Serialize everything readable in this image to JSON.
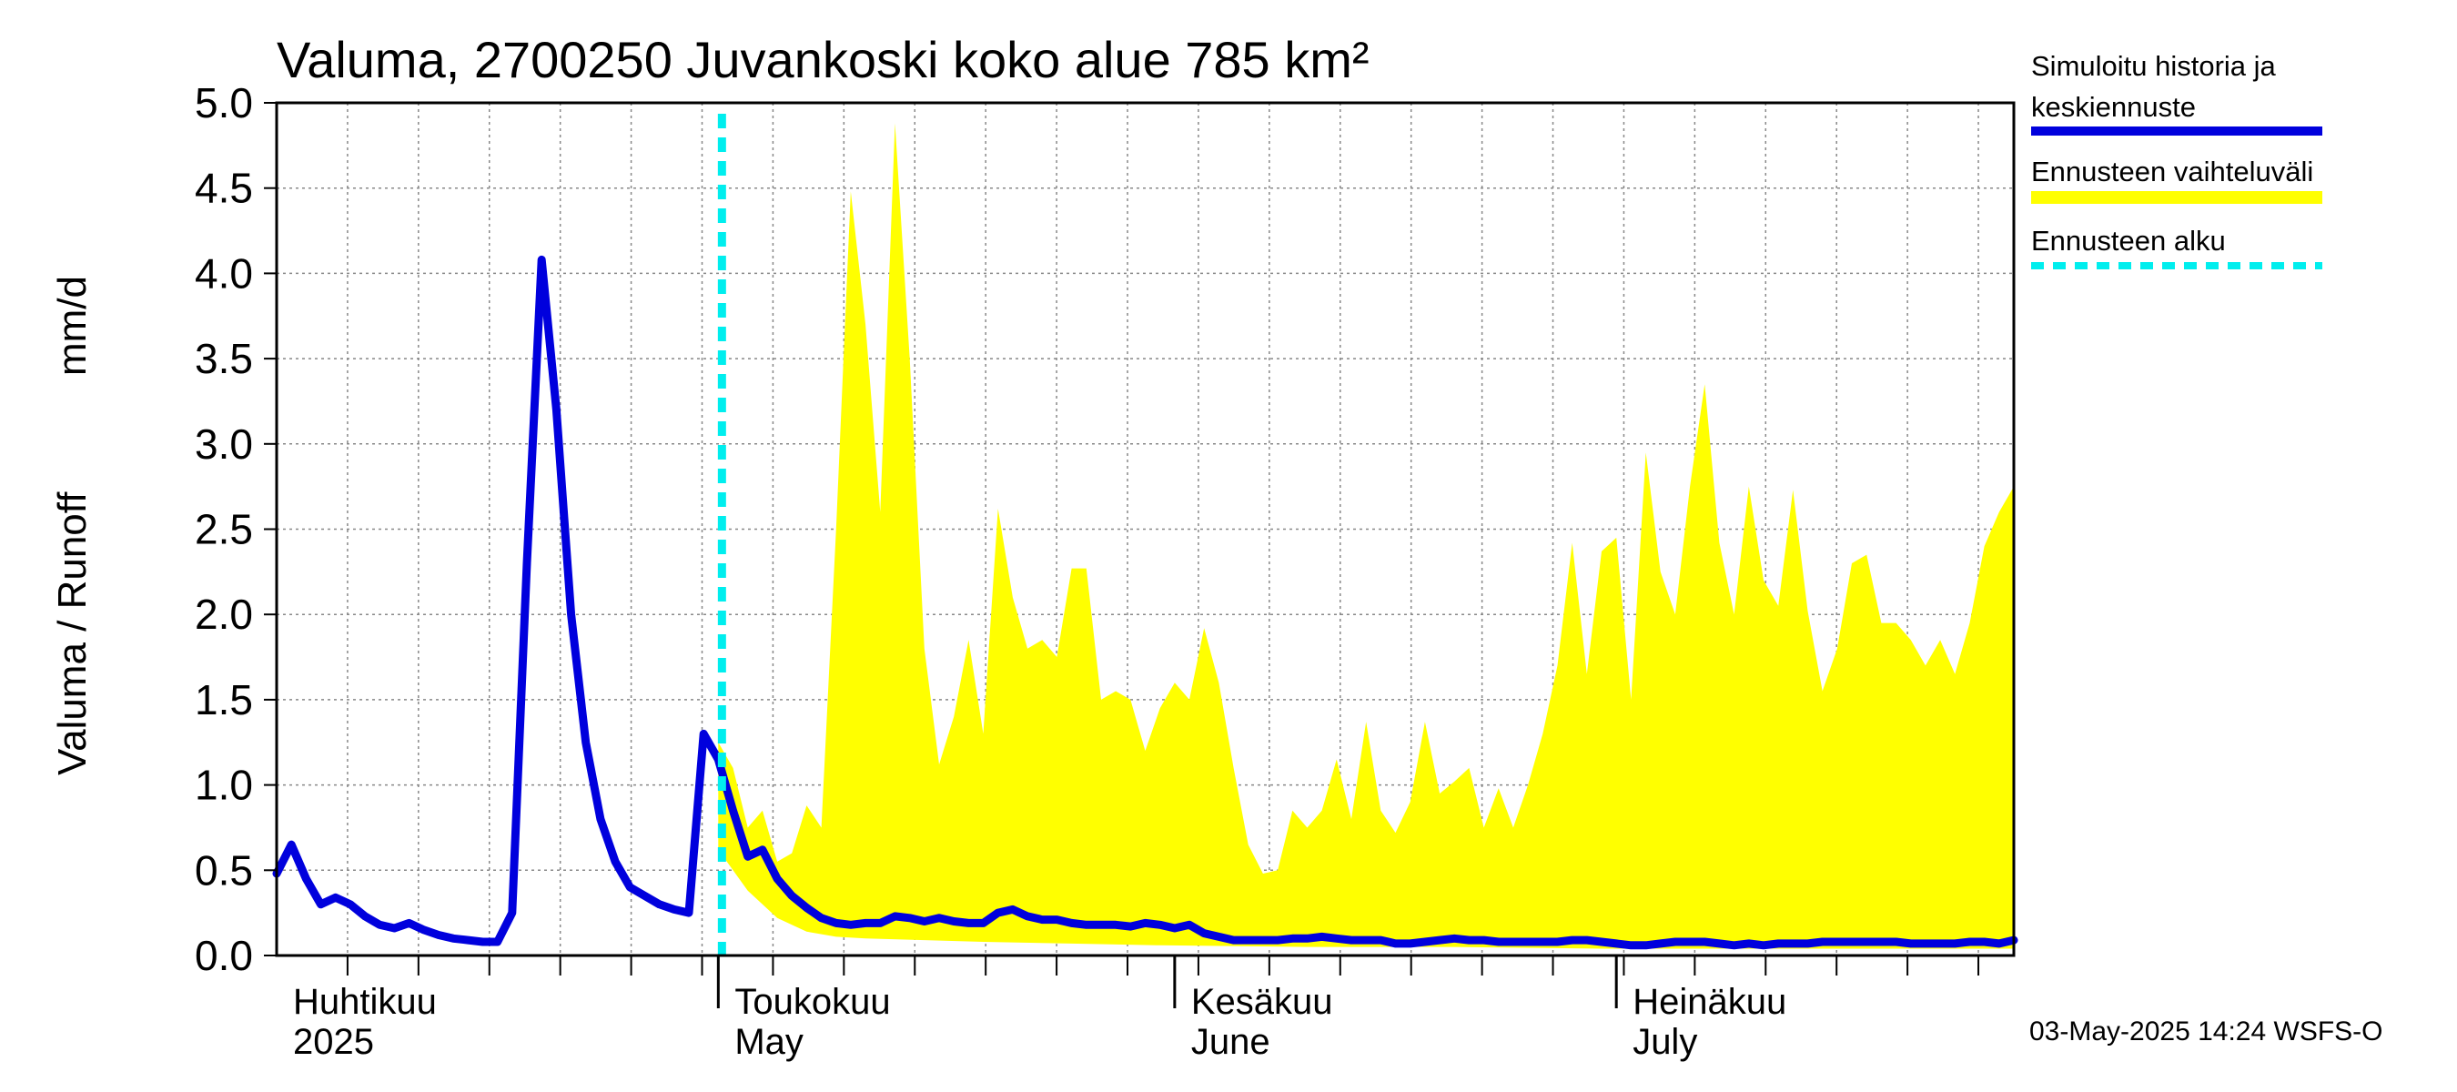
{
  "chart_data": {
    "type": "area",
    "title": "Valuma, 2700250 Juvankoski koko alue 785 km²",
    "ylabel_left": "Valuma / Runoff",
    "ylabel_unit": "mm/d",
    "ylim": [
      0,
      5
    ],
    "yticks": [
      "0.0",
      "0.5",
      "1.0",
      "1.5",
      "2.0",
      "2.5",
      "3.0",
      "3.5",
      "4.0",
      "4.5",
      "5.0"
    ],
    "x_range_days": [
      0,
      118
    ],
    "months": [
      {
        "fi": "Huhtikuu",
        "en": "2025"
      },
      {
        "fi": "Toukokuu",
        "en": "May"
      },
      {
        "fi": "Kesäkuu",
        "en": "June"
      },
      {
        "fi": "Heinäkuu",
        "en": "July"
      }
    ],
    "forecast_start_day": 30.0,
    "grid": true,
    "legend": {
      "position": "right",
      "items": [
        {
          "label_line1": "Simuloitu historia ja",
          "label_line2": "keskiennuste",
          "color": "#0000dd",
          "style": "line"
        },
        {
          "label_line1": "Ennusteen vaihteluväli",
          "label_line2": "",
          "color": "#ffff00",
          "style": "band"
        },
        {
          "label_line1": "Ennusteen alku",
          "label_line2": "",
          "color": "#00eeee",
          "style": "dashed"
        }
      ]
    },
    "footer": "03-May-2025 14:24 WSFS-O",
    "colors": {
      "history": "#0000dd",
      "band": "#ffff00",
      "forecast_start": "#00eeee",
      "grid": "#888888"
    },
    "series": [
      {
        "name": "Simuloitu historia ja keskiennuste",
        "points": [
          [
            0,
            0.48
          ],
          [
            1,
            0.65
          ],
          [
            2,
            0.45
          ],
          [
            3,
            0.3
          ],
          [
            4,
            0.34
          ],
          [
            5,
            0.3
          ],
          [
            6,
            0.23
          ],
          [
            7,
            0.18
          ],
          [
            8,
            0.16
          ],
          [
            9,
            0.19
          ],
          [
            10,
            0.15
          ],
          [
            11,
            0.12
          ],
          [
            12,
            0.1
          ],
          [
            13,
            0.09
          ],
          [
            14,
            0.08
          ],
          [
            15,
            0.08
          ],
          [
            16,
            0.25
          ],
          [
            17,
            2.3
          ],
          [
            18,
            4.08
          ],
          [
            19,
            3.2
          ],
          [
            20,
            2.0
          ],
          [
            21,
            1.25
          ],
          [
            22,
            0.8
          ],
          [
            23,
            0.55
          ],
          [
            24,
            0.4
          ],
          [
            25,
            0.35
          ],
          [
            26,
            0.3
          ],
          [
            27,
            0.27
          ],
          [
            28,
            0.25
          ],
          [
            29,
            1.3
          ],
          [
            30,
            1.15
          ],
          [
            31,
            0.85
          ],
          [
            32,
            0.58
          ],
          [
            33,
            0.62
          ],
          [
            34,
            0.45
          ],
          [
            35,
            0.35
          ],
          [
            36,
            0.28
          ],
          [
            37,
            0.22
          ],
          [
            38,
            0.19
          ],
          [
            39,
            0.18
          ],
          [
            40,
            0.19
          ],
          [
            41,
            0.19
          ],
          [
            42,
            0.23
          ],
          [
            43,
            0.22
          ],
          [
            44,
            0.2
          ],
          [
            45,
            0.22
          ],
          [
            46,
            0.2
          ],
          [
            47,
            0.19
          ],
          [
            48,
            0.19
          ],
          [
            49,
            0.25
          ],
          [
            50,
            0.27
          ],
          [
            51,
            0.23
          ],
          [
            52,
            0.21
          ],
          [
            53,
            0.21
          ],
          [
            54,
            0.19
          ],
          [
            55,
            0.18
          ],
          [
            56,
            0.18
          ],
          [
            57,
            0.18
          ],
          [
            58,
            0.17
          ],
          [
            59,
            0.19
          ],
          [
            60,
            0.18
          ],
          [
            61,
            0.16
          ],
          [
            62,
            0.18
          ],
          [
            63,
            0.13
          ],
          [
            64,
            0.11
          ],
          [
            65,
            0.09
          ],
          [
            66,
            0.09
          ],
          [
            67,
            0.09
          ],
          [
            68,
            0.09
          ],
          [
            69,
            0.1
          ],
          [
            70,
            0.1
          ],
          [
            71,
            0.11
          ],
          [
            72,
            0.1
          ],
          [
            73,
            0.09
          ],
          [
            74,
            0.09
          ],
          [
            75,
            0.09
          ],
          [
            76,
            0.07
          ],
          [
            77,
            0.07
          ],
          [
            78,
            0.08
          ],
          [
            79,
            0.09
          ],
          [
            80,
            0.1
          ],
          [
            81,
            0.09
          ],
          [
            82,
            0.09
          ],
          [
            83,
            0.08
          ],
          [
            84,
            0.08
          ],
          [
            85,
            0.08
          ],
          [
            86,
            0.08
          ],
          [
            87,
            0.08
          ],
          [
            88,
            0.09
          ],
          [
            89,
            0.09
          ],
          [
            90,
            0.08
          ],
          [
            91,
            0.07
          ],
          [
            92,
            0.06
          ],
          [
            93,
            0.06
          ],
          [
            94,
            0.07
          ],
          [
            95,
            0.08
          ],
          [
            96,
            0.08
          ],
          [
            97,
            0.08
          ],
          [
            98,
            0.07
          ],
          [
            99,
            0.06
          ],
          [
            100,
            0.07
          ],
          [
            101,
            0.06
          ],
          [
            102,
            0.07
          ],
          [
            103,
            0.07
          ],
          [
            104,
            0.07
          ],
          [
            105,
            0.08
          ],
          [
            106,
            0.08
          ],
          [
            107,
            0.08
          ],
          [
            108,
            0.08
          ],
          [
            109,
            0.08
          ],
          [
            110,
            0.08
          ],
          [
            111,
            0.07
          ],
          [
            112,
            0.07
          ],
          [
            113,
            0.07
          ],
          [
            114,
            0.07
          ],
          [
            115,
            0.08
          ],
          [
            116,
            0.08
          ],
          [
            117,
            0.07
          ],
          [
            118,
            0.09
          ]
        ]
      },
      {
        "name": "Ennusteen vaihteluväli",
        "upper": [
          [
            30,
            1.25
          ],
          [
            31,
            1.1
          ],
          [
            32,
            0.75
          ],
          [
            33,
            0.85
          ],
          [
            34,
            0.55
          ],
          [
            35,
            0.6
          ],
          [
            36,
            0.88
          ],
          [
            37,
            0.75
          ],
          [
            38,
            2.5
          ],
          [
            39,
            4.48
          ],
          [
            40,
            3.7
          ],
          [
            41,
            2.6
          ],
          [
            42,
            4.88
          ],
          [
            43,
            3.5
          ],
          [
            44,
            1.8
          ],
          [
            45,
            1.12
          ],
          [
            46,
            1.4
          ],
          [
            47,
            1.85
          ],
          [
            48,
            1.3
          ],
          [
            49,
            2.62
          ],
          [
            50,
            2.1
          ],
          [
            51,
            1.8
          ],
          [
            52,
            1.85
          ],
          [
            53,
            1.75
          ],
          [
            54,
            2.27
          ],
          [
            55,
            2.27
          ],
          [
            56,
            1.5
          ],
          [
            57,
            1.55
          ],
          [
            58,
            1.5
          ],
          [
            59,
            1.2
          ],
          [
            60,
            1.45
          ],
          [
            61,
            1.6
          ],
          [
            62,
            1.5
          ],
          [
            63,
            1.92
          ],
          [
            64,
            1.6
          ],
          [
            65,
            1.1
          ],
          [
            66,
            0.65
          ],
          [
            67,
            0.48
          ],
          [
            68,
            0.5
          ],
          [
            69,
            0.85
          ],
          [
            70,
            0.75
          ],
          [
            71,
            0.85
          ],
          [
            72,
            1.15
          ],
          [
            73,
            0.8
          ],
          [
            74,
            1.37
          ],
          [
            75,
            0.85
          ],
          [
            76,
            0.72
          ],
          [
            77,
            0.9
          ],
          [
            78,
            1.37
          ],
          [
            79,
            0.95
          ],
          [
            80,
            1.02
          ],
          [
            81,
            1.1
          ],
          [
            82,
            0.75
          ],
          [
            83,
            0.98
          ],
          [
            84,
            0.75
          ],
          [
            85,
            1.0
          ],
          [
            86,
            1.3
          ],
          [
            87,
            1.7
          ],
          [
            88,
            2.42
          ],
          [
            89,
            1.65
          ],
          [
            90,
            2.37
          ],
          [
            91,
            2.45
          ],
          [
            92,
            1.5
          ],
          [
            93,
            2.95
          ],
          [
            94,
            2.25
          ],
          [
            95,
            2.0
          ],
          [
            96,
            2.75
          ],
          [
            97,
            3.35
          ],
          [
            98,
            2.42
          ],
          [
            99,
            2.0
          ],
          [
            100,
            2.75
          ],
          [
            101,
            2.2
          ],
          [
            102,
            2.05
          ],
          [
            103,
            2.73
          ],
          [
            104,
            2.02
          ],
          [
            105,
            1.55
          ],
          [
            106,
            1.8
          ],
          [
            107,
            2.3
          ],
          [
            108,
            2.35
          ],
          [
            109,
            1.95
          ],
          [
            110,
            1.95
          ],
          [
            111,
            1.85
          ],
          [
            112,
            1.7
          ],
          [
            113,
            1.85
          ],
          [
            114,
            1.65
          ],
          [
            115,
            1.95
          ],
          [
            116,
            2.4
          ],
          [
            117,
            2.6
          ],
          [
            118,
            2.75
          ]
        ],
        "lower": [
          [
            30,
            0.62
          ],
          [
            32,
            0.38
          ],
          [
            34,
            0.22
          ],
          [
            36,
            0.14
          ],
          [
            38,
            0.11
          ],
          [
            40,
            0.1
          ],
          [
            44,
            0.09
          ],
          [
            48,
            0.08
          ],
          [
            54,
            0.07
          ],
          [
            60,
            0.06
          ],
          [
            70,
            0.05
          ],
          [
            80,
            0.05
          ],
          [
            90,
            0.04
          ],
          [
            100,
            0.04
          ],
          [
            110,
            0.04
          ],
          [
            118,
            0.04
          ]
        ]
      }
    ]
  }
}
